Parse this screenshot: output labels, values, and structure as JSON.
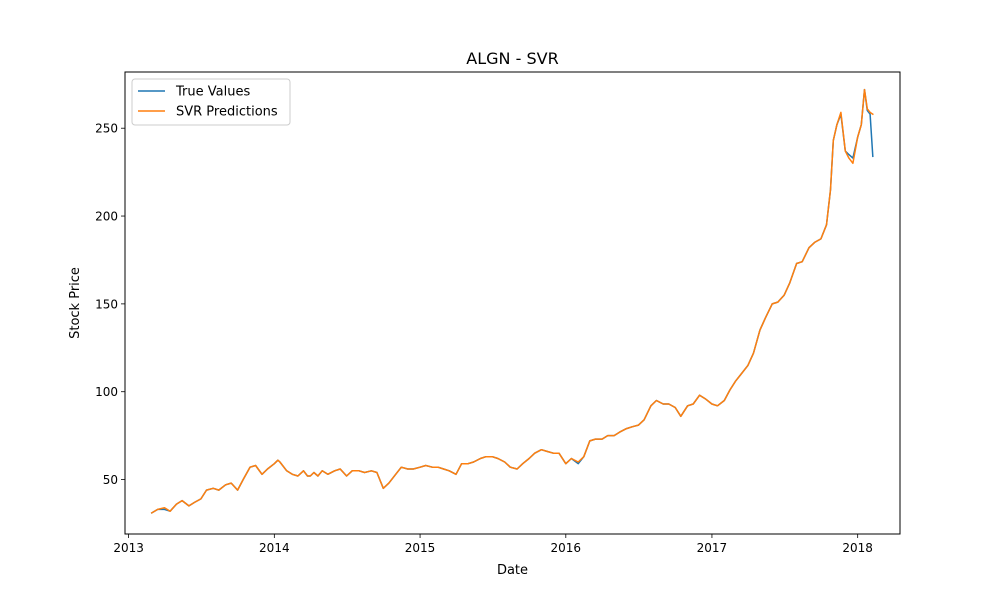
{
  "chart_data": {
    "type": "line",
    "title": "ALGN - SVR",
    "xlabel": "Date",
    "ylabel": "Stock Price",
    "x_ticks": [
      "2013",
      "2014",
      "2015",
      "2016",
      "2017",
      "2018"
    ],
    "y_ticks": [
      50,
      100,
      150,
      200,
      250
    ],
    "xlim": [
      "2012-12-23",
      "2018-04-17"
    ],
    "ylim": [
      19,
      282
    ],
    "legend_position": "top-left",
    "grid": false,
    "x": [
      "2013-02-28",
      "2013-03-15",
      "2013-04-01",
      "2013-04-15",
      "2013-05-01",
      "2013-05-15",
      "2013-06-01",
      "2013-06-15",
      "2013-07-01",
      "2013-07-15",
      "2013-08-01",
      "2013-08-15",
      "2013-09-01",
      "2013-09-15",
      "2013-10-01",
      "2013-10-15",
      "2013-11-01",
      "2013-11-15",
      "2013-12-01",
      "2013-12-15",
      "2014-01-01",
      "2014-01-10",
      "2014-01-15",
      "2014-02-01",
      "2014-02-15",
      "2014-03-01",
      "2014-03-15",
      "2014-03-25",
      "2014-04-01",
      "2014-04-10",
      "2014-04-20",
      "2014-05-01",
      "2014-05-15",
      "2014-06-01",
      "2014-06-15",
      "2014-07-01",
      "2014-07-15",
      "2014-08-01",
      "2014-08-15",
      "2014-09-01",
      "2014-09-15",
      "2014-10-01",
      "2014-10-15",
      "2014-11-01",
      "2014-11-15",
      "2014-12-01",
      "2014-12-15",
      "2015-01-01",
      "2015-01-15",
      "2015-02-01",
      "2015-02-15",
      "2015-03-01",
      "2015-03-15",
      "2015-04-01",
      "2015-04-15",
      "2015-05-01",
      "2015-05-15",
      "2015-06-01",
      "2015-06-15",
      "2015-07-01",
      "2015-07-15",
      "2015-08-01",
      "2015-08-15",
      "2015-09-01",
      "2015-09-15",
      "2015-10-01",
      "2015-10-15",
      "2015-11-01",
      "2015-11-15",
      "2015-12-01",
      "2015-12-15",
      "2016-01-01",
      "2016-01-15",
      "2016-02-01",
      "2016-02-15",
      "2016-03-01",
      "2016-03-15",
      "2016-04-01",
      "2016-04-15",
      "2016-05-01",
      "2016-05-15",
      "2016-06-01",
      "2016-06-15",
      "2016-07-01",
      "2016-07-15",
      "2016-08-01",
      "2016-08-15",
      "2016-09-01",
      "2016-09-15",
      "2016-10-01",
      "2016-10-15",
      "2016-11-01",
      "2016-11-15",
      "2016-12-01",
      "2016-12-15",
      "2017-01-01",
      "2017-01-15",
      "2017-02-01",
      "2017-02-15",
      "2017-03-01",
      "2017-03-15",
      "2017-04-01",
      "2017-04-15",
      "2017-05-01",
      "2017-05-15",
      "2017-06-01",
      "2017-06-15",
      "2017-07-01",
      "2017-07-15",
      "2017-08-01",
      "2017-08-15",
      "2017-09-01",
      "2017-09-15",
      "2017-10-01",
      "2017-10-15",
      "2017-10-25",
      "2017-11-01",
      "2017-11-10",
      "2017-11-20",
      "2017-12-01",
      "2017-12-10",
      "2017-12-20",
      "2018-01-01",
      "2018-01-10",
      "2018-01-18",
      "2018-01-25",
      "2018-02-01",
      "2018-02-08"
    ],
    "series": [
      {
        "name": "True Values",
        "color": "#1f77b4",
        "values": [
          31,
          33,
          33,
          32,
          36,
          38,
          35,
          37,
          39,
          44,
          45,
          44,
          47,
          48,
          44,
          50,
          57,
          58,
          53,
          56,
          59,
          61,
          60,
          55,
          53,
          52,
          55,
          52,
          52,
          54,
          52,
          55,
          53,
          55,
          56,
          52,
          55,
          55,
          54,
          55,
          54,
          45,
          48,
          53,
          57,
          56,
          56,
          57,
          58,
          57,
          57,
          56,
          55,
          53,
          59,
          59,
          60,
          62,
          63,
          63,
          62,
          60,
          57,
          56,
          59,
          62,
          65,
          67,
          66,
          65,
          65,
          59,
          62,
          59,
          63,
          72,
          73,
          73,
          75,
          75,
          77,
          79,
          80,
          81,
          84,
          92,
          95,
          93,
          93,
          91,
          86,
          92,
          93,
          98,
          96,
          93,
          92,
          95,
          101,
          106,
          110,
          115,
          122,
          135,
          142,
          150,
          151,
          155,
          162,
          173,
          174,
          182,
          185,
          187,
          195,
          215,
          243,
          252,
          258,
          237,
          235,
          233,
          245,
          252,
          272,
          260,
          258,
          234
        ]
      },
      {
        "name": "SVR Predictions",
        "color": "#ff7f0e",
        "values": [
          31,
          33,
          34,
          32,
          36,
          38,
          35,
          37,
          39,
          44,
          45,
          44,
          47,
          48,
          44,
          50,
          57,
          58,
          53,
          56,
          59,
          61,
          60,
          55,
          53,
          52,
          55,
          52,
          52,
          54,
          52,
          55,
          53,
          55,
          56,
          52,
          55,
          55,
          54,
          55,
          54,
          45,
          48,
          53,
          57,
          56,
          56,
          57,
          58,
          57,
          57,
          56,
          55,
          53,
          59,
          59,
          60,
          62,
          63,
          63,
          62,
          60,
          57,
          56,
          59,
          62,
          65,
          67,
          66,
          65,
          65,
          59,
          62,
          60,
          63,
          72,
          73,
          73,
          75,
          75,
          77,
          79,
          80,
          81,
          84,
          92,
          95,
          93,
          93,
          91,
          86,
          92,
          93,
          98,
          96,
          93,
          92,
          95,
          101,
          106,
          110,
          115,
          122,
          135,
          142,
          150,
          151,
          155,
          162,
          173,
          174,
          182,
          185,
          187,
          195,
          215,
          243,
          252,
          259,
          237,
          233,
          230,
          245,
          252,
          272,
          261,
          259,
          258
        ]
      }
    ]
  }
}
